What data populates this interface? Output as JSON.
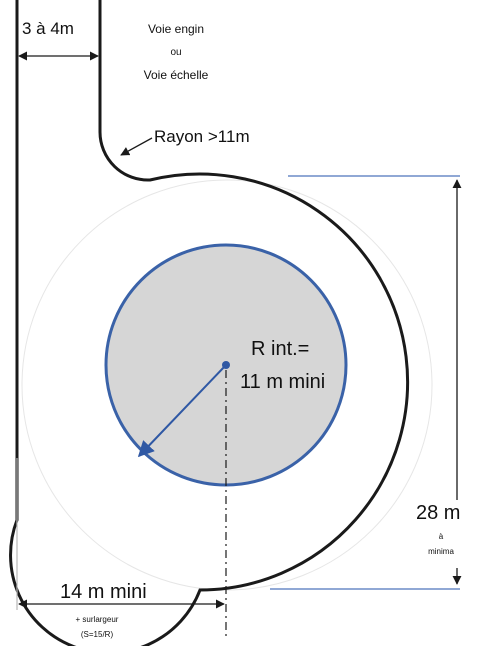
{
  "labels": {
    "road_width": "3 à 4m",
    "road_type_line1": "Voie engin",
    "road_type_or": "ou",
    "road_type_line2": "Voie échelle",
    "turn_radius": "Rayon >11m",
    "inner_radius_line1": "R int.=",
    "inner_radius_line2": "11 m mini",
    "total_diameter": "28 m",
    "total_diameter_sub1": "à",
    "total_diameter_sub2": "minima",
    "lane_width": "14 m mini",
    "lane_width_extra": "+ surlargeur",
    "lane_width_formula": "(S=15/R)"
  },
  "colors": {
    "outline": "#1a1a1a",
    "island_fill": "#d6d6d6",
    "island_stroke": "#3a62a8",
    "arrow": "#2f58a4",
    "dimension": "#1a1a1a",
    "guide_line": "#6b8cc7"
  }
}
